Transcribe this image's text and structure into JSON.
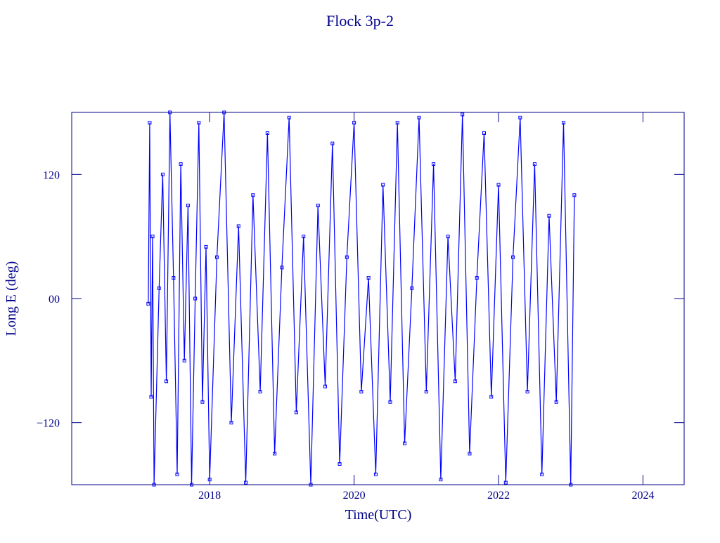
{
  "chart_data": {
    "type": "line",
    "title": "Flock 3p-2",
    "x_label": "Time(UTC)",
    "y_label": "Long E (deg)",
    "x": [
      2017.15,
      2017.17,
      2017.19,
      2017.21,
      2017.23,
      2017.3,
      2017.35,
      2017.4,
      2017.45,
      2017.5,
      2017.55,
      2017.6,
      2017.65,
      2017.7,
      2017.75,
      2017.8,
      2017.85,
      2017.9,
      2017.95,
      2018.0,
      2018.1,
      2018.2,
      2018.3,
      2018.4,
      2018.5,
      2018.6,
      2018.7,
      2018.8,
      2018.9,
      2019.0,
      2019.1,
      2019.2,
      2019.3,
      2019.4,
      2019.5,
      2019.6,
      2019.7,
      2019.8,
      2019.9,
      2020.0,
      2020.1,
      2020.2,
      2020.3,
      2020.4,
      2020.5,
      2020.6,
      2020.7,
      2020.8,
      2020.9,
      2021.0,
      2021.1,
      2021.2,
      2021.3,
      2021.4,
      2021.5,
      2021.6,
      2021.7,
      2021.8,
      2021.9,
      2022.0,
      2022.1,
      2022.2,
      2022.3,
      2022.4,
      2022.5,
      2022.6,
      2022.7,
      2022.8,
      2022.9,
      2023.0,
      2023.05
    ],
    "series": [
      {
        "name": "Flock 3p-2",
        "color": "#0000ff",
        "values": [
          -5,
          170,
          -95,
          60,
          -180,
          10,
          120,
          -80,
          180,
          20,
          -170,
          130,
          -60,
          90,
          -180,
          0,
          170,
          -100,
          50,
          -175,
          40,
          180,
          -120,
          70,
          -178,
          100,
          -90,
          160,
          -150,
          30,
          175,
          -110,
          60,
          -180,
          90,
          -85,
          150,
          -160,
          40,
          170,
          -90,
          20,
          -170,
          110,
          -100,
          170,
          -140,
          10,
          175,
          -90,
          130,
          -175,
          60,
          -80,
          178,
          -150,
          20,
          160,
          -95,
          110,
          -178,
          40,
          175,
          -90,
          130,
          -170,
          80,
          -100,
          170,
          -180,
          100
        ]
      }
    ],
    "xlim": [
      2016.09,
      2024.57
    ],
    "xticks": [
      2018,
      2020,
      2022,
      2024
    ],
    "ylim": [
      -180,
      180
    ],
    "yticks": [
      {
        "value": -120,
        "label": "−120"
      },
      {
        "value": 0,
        "label": "00"
      },
      120
    ],
    "axis_color": "#00008b"
  }
}
